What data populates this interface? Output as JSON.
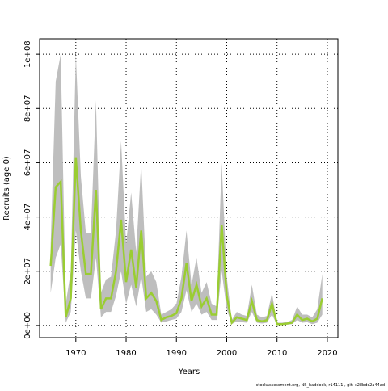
{
  "chart_data": {
    "type": "line",
    "xlabel": "Years",
    "ylabel": "Recruits (age 0)",
    "caption": "stockassessment.org, NS_haddock, r14111 , git: c28bdc2a44ad",
    "x": [
      1965,
      1966,
      1967,
      1968,
      1969,
      1970,
      1971,
      1972,
      1973,
      1974,
      1975,
      1976,
      1977,
      1978,
      1979,
      1980,
      1981,
      1982,
      1983,
      1984,
      1985,
      1986,
      1987,
      1988,
      1989,
      1990,
      1991,
      1992,
      1993,
      1994,
      1995,
      1996,
      1997,
      1998,
      1999,
      2000,
      2001,
      2002,
      2003,
      2004,
      2005,
      2006,
      2007,
      2008,
      2009,
      2010,
      2011,
      2012,
      2013,
      2014,
      2015,
      2016,
      2017,
      2018,
      2019
    ],
    "band": {
      "color": "#bebebe",
      "lower": [
        12000000,
        25000000,
        30000000,
        1000000,
        5000000,
        35000000,
        20000000,
        10000000,
        10000000,
        25000000,
        3000000,
        5000000,
        5000000,
        11000000,
        20000000,
        8000000,
        15000000,
        7000000,
        18000000,
        5000000,
        6000000,
        4000000,
        1000000,
        1500000,
        2000000,
        2500000,
        5000000,
        13000000,
        5000000,
        8000000,
        4000000,
        5000000,
        2000000,
        2000000,
        20000000,
        6000000,
        500000,
        1500000,
        1200000,
        1000000,
        5000000,
        1000000,
        700000,
        1000000,
        4000000,
        200000,
        200000,
        300000,
        500000,
        2000000,
        1000000,
        1200000,
        500000,
        1000000,
        4000000
      ],
      "upper": [
        30000000,
        90000000,
        100000000,
        8000000,
        20000000,
        100000000,
        55000000,
        34000000,
        34000000,
        83000000,
        12000000,
        17000000,
        18000000,
        35000000,
        68000000,
        30000000,
        49000000,
        27000000,
        60000000,
        18000000,
        20000000,
        16000000,
        4000000,
        5000000,
        6000000,
        8000000,
        18000000,
        35000000,
        15000000,
        25000000,
        12000000,
        16000000,
        8000000,
        7000000,
        60000000,
        18000000,
        2000000,
        5000000,
        4000000,
        3500000,
        15000000,
        4000000,
        3000000,
        3500000,
        12000000,
        1000000,
        1000000,
        1300000,
        2000000,
        7000000,
        4000000,
        4000000,
        3000000,
        6000000,
        19000000
      ]
    },
    "series": [
      {
        "color": "#9acd32",
        "values": [
          22000000,
          51000000,
          53000000,
          3000000,
          10000000,
          62000000,
          35000000,
          19000000,
          19000000,
          50000000,
          6000000,
          10000000,
          10000000,
          20000000,
          39000000,
          16000000,
          28000000,
          14000000,
          35000000,
          10000000,
          12000000,
          9000000,
          2000000,
          3000000,
          3500000,
          4500000,
          10000000,
          23000000,
          9000000,
          15000000,
          7000000,
          10000000,
          4000000,
          4000000,
          37000000,
          11000000,
          1000000,
          3000000,
          2500000,
          2000000,
          9000000,
          2000000,
          1500000,
          2000000,
          8000000,
          500000,
          500000,
          700000,
          1000000,
          4000000,
          2000000,
          2500000,
          1500000,
          2500000,
          10000000
        ]
      }
    ],
    "xlim": [
      1962.8,
      2022.1
    ],
    "xticks": [
      1970,
      1980,
      1990,
      2000,
      2010,
      2020
    ],
    "ylim": [
      -4500000,
      105700000
    ],
    "yticks": [
      {
        "value": 0,
        "label": "0e+00"
      },
      {
        "value": 20000000,
        "label": "2e+07"
      },
      {
        "value": 40000000,
        "label": "4e+07"
      },
      {
        "value": 60000000,
        "label": "6e+07"
      },
      {
        "value": 80000000,
        "label": "8e+07"
      },
      {
        "value": 100000000,
        "label": "1e+08"
      }
    ],
    "grid": true
  }
}
